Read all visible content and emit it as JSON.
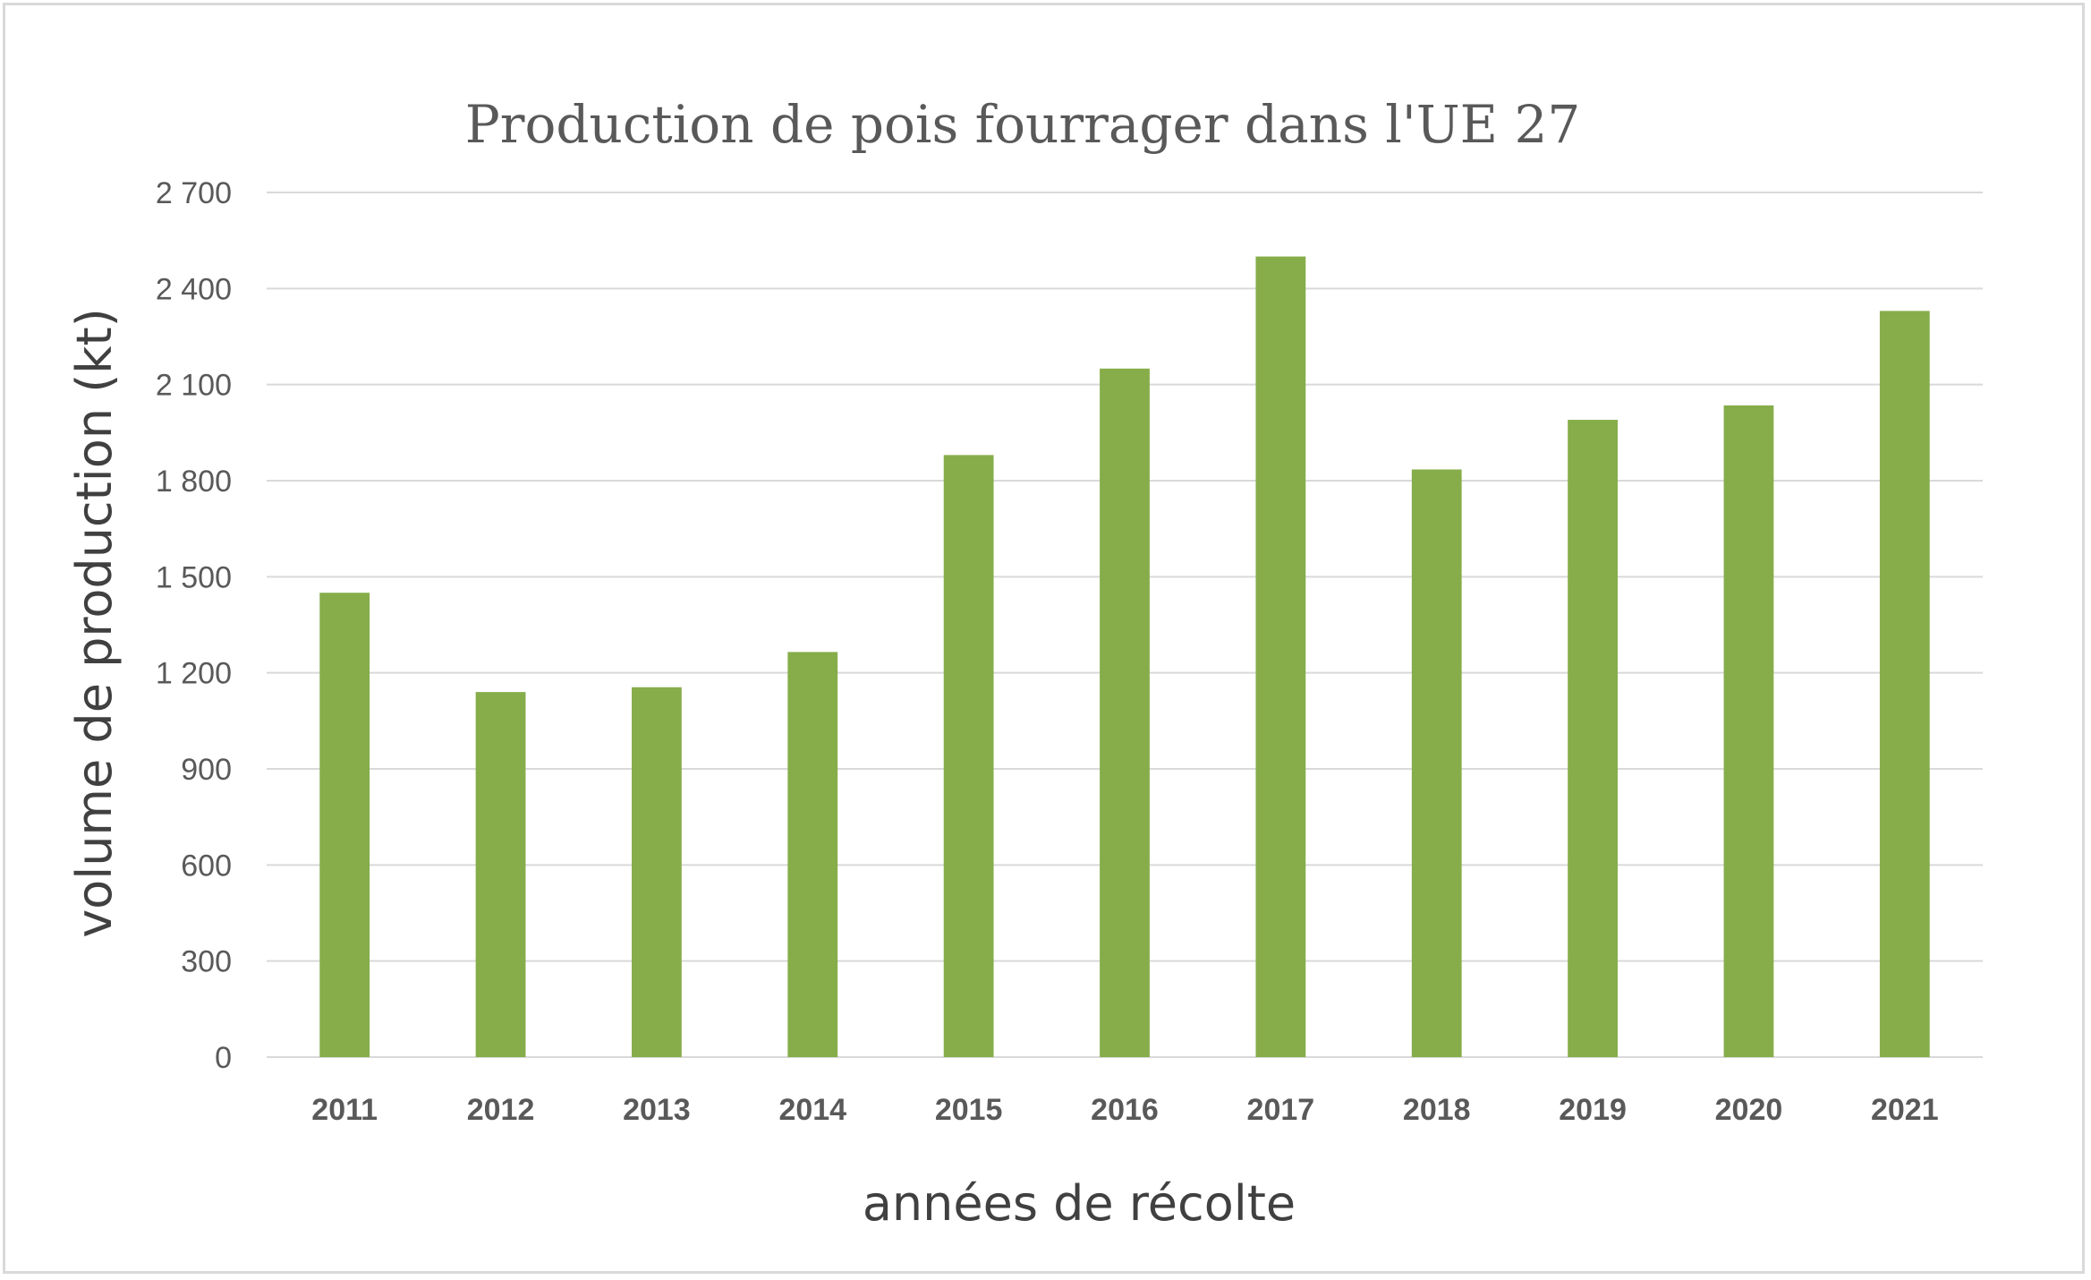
{
  "chart_data": {
    "type": "bar",
    "title": "Production de pois fourrager dans l'UE 27",
    "xlabel": "années de récolte",
    "ylabel": "volume de production (kt)",
    "categories": [
      "2011",
      "2012",
      "2013",
      "2014",
      "2015",
      "2016",
      "2017",
      "2018",
      "2019",
      "2020",
      "2021"
    ],
    "values": [
      1450,
      1140,
      1155,
      1265,
      1880,
      2150,
      2500,
      1835,
      1990,
      2035,
      2330
    ],
    "ylim": [
      0,
      2700
    ],
    "yticks": [
      0,
      300,
      600,
      900,
      1200,
      1500,
      1800,
      2100,
      2400,
      2700
    ],
    "ytick_labels": [
      "0",
      "300",
      "600",
      "900",
      "1 200",
      "1 500",
      "1 800",
      "2 100",
      "2 400",
      "2 700"
    ],
    "grid": true,
    "legend": "none",
    "bar_color": "#86ad4a"
  }
}
